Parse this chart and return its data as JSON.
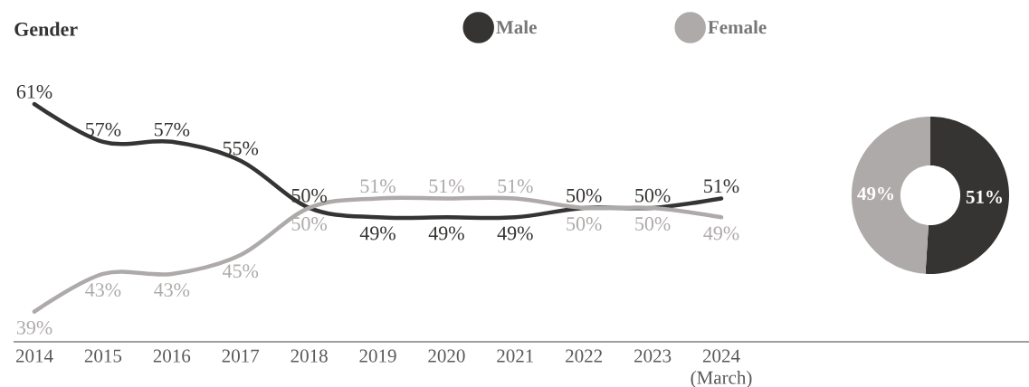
{
  "chart_data": [
    {
      "type": "line",
      "title": "Gender",
      "categories": [
        "2014",
        "2015",
        "2016",
        "2017",
        "2018",
        "2019",
        "2020",
        "2021",
        "2022",
        "2023",
        "2024 (March)"
      ],
      "series": [
        {
          "name": "Male",
          "color": "#353433",
          "values": [
            61,
            57,
            57,
            55,
            50,
            49,
            49,
            49,
            50,
            50,
            51
          ],
          "value_labels": [
            "61%",
            "57%",
            "57%",
            "55%",
            "50%",
            "49%",
            "49%",
            "49%",
            "50%",
            "50%",
            "51%"
          ]
        },
        {
          "name": "Female",
          "color": "#aeaaa9",
          "values": [
            39,
            43,
            43,
            45,
            50,
            51,
            51,
            51,
            50,
            50,
            49
          ],
          "value_labels": [
            "39%",
            "43%",
            "43%",
            "45%",
            "50%",
            "51%",
            "51%",
            "51%",
            "50%",
            "50%",
            "49%"
          ]
        }
      ],
      "legend": "top",
      "marker": "none",
      "tick_labels": "x"
    },
    {
      "type": "donut",
      "categories": [
        null,
        null
      ],
      "values": [
        51,
        49
      ],
      "colors": [
        "#353433",
        "#aeaaa9"
      ],
      "value_labels": [
        "51%",
        "49%"
      ]
    }
  ]
}
